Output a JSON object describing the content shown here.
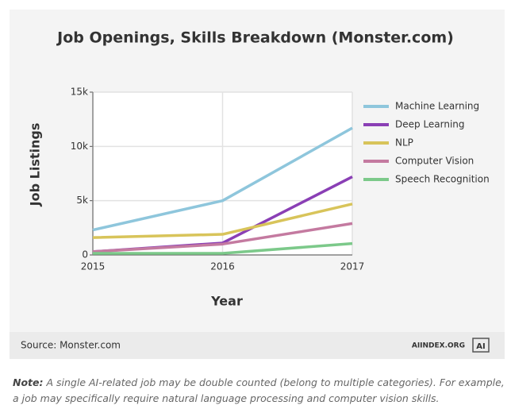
{
  "chart_data": {
    "type": "line",
    "title": "Job Openings, Skills Breakdown (Monster.com)",
    "x_label": "Year",
    "y_label": "Job Listings",
    "x": [
      2015,
      2016,
      2017
    ],
    "xlim": [
      2015,
      2017
    ],
    "xticks": [
      2015,
      2016,
      2017
    ],
    "ylim": [
      0,
      15000
    ],
    "yticks": [
      {
        "value": 0,
        "label": "0"
      },
      {
        "value": 5000,
        "label": "5k"
      },
      {
        "value": 10000,
        "label": "10k"
      },
      {
        "value": 15000,
        "label": "15k"
      }
    ],
    "grid": true,
    "legend": "right",
    "series": [
      {
        "name": "Machine Learning",
        "color": "#8ec6dc",
        "values": [
          2300,
          5000,
          11700
        ]
      },
      {
        "name": "Deep Learning",
        "color": "#8a3fb5",
        "values": [
          300,
          1100,
          7200
        ]
      },
      {
        "name": "NLP",
        "color": "#d8c45a",
        "values": [
          1600,
          1900,
          4700
        ]
      },
      {
        "name": "Computer Vision",
        "color": "#c47aa0",
        "values": [
          300,
          1000,
          2900
        ]
      },
      {
        "name": "Speech Recognition",
        "color": "#7cc98a",
        "values": [
          150,
          150,
          1050
        ]
      }
    ]
  },
  "footer": {
    "source": "Source: Monster.com",
    "brand": "AIINDEX.ORG",
    "logo": "AI"
  },
  "note": {
    "label": "Note:",
    "text": "A single AI-related job may be double counted (belong to multiple categories). For example, a job may specifically require natural language processing and computer vision skills."
  }
}
